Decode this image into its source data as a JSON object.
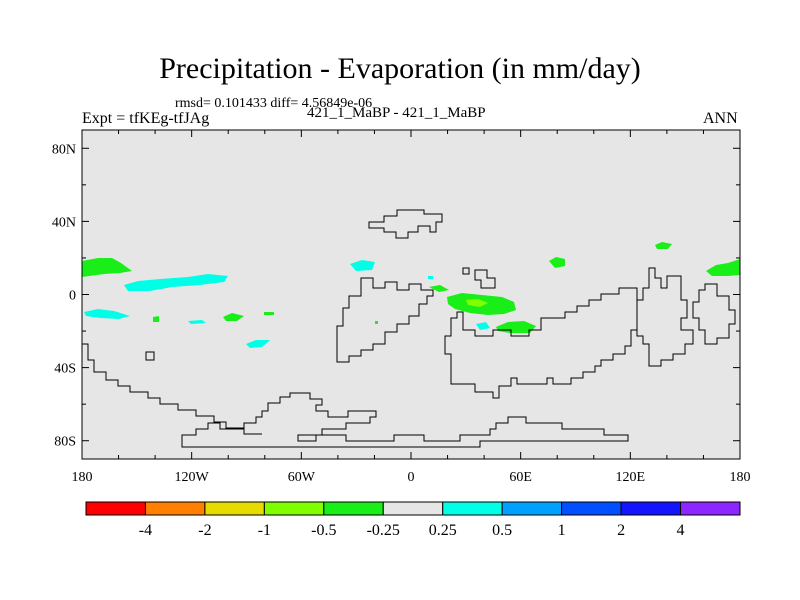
{
  "title": "Precipitation - Evaporation (in mm/day)",
  "stats": "rmsd= 0.101433 diff= 4.56849e-06",
  "expt": "Expt = tfKEg-tfJAg",
  "comparison": "421_1_MaBP - 421_1_MaBP",
  "season": "ANN",
  "map": {
    "background_color": "#e6e6e6",
    "lon_range": [
      -180,
      180
    ],
    "lat_range": [
      -90,
      90
    ],
    "lat_ticks": [
      {
        "value": 80,
        "label": "80N"
      },
      {
        "value": 40,
        "label": "40N"
      },
      {
        "value": 0,
        "label": "0"
      },
      {
        "value": -40,
        "label": "40S"
      },
      {
        "value": -80,
        "label": "80S"
      }
    ],
    "lon_ticks": [
      {
        "value": -180,
        "label": "180"
      },
      {
        "value": -120,
        "label": "120W"
      },
      {
        "value": -60,
        "label": "60W"
      },
      {
        "value": 0,
        "label": "0"
      },
      {
        "value": 60,
        "label": "60E"
      },
      {
        "value": 120,
        "label": "120E"
      },
      {
        "value": 180,
        "label": "180"
      }
    ]
  },
  "colorbar": {
    "colors": [
      "#ff0000",
      "#ff8000",
      "#e6dc00",
      "#80ff00",
      "#19ee19",
      "#e6e6e6",
      "#00ffe6",
      "#00a0ff",
      "#0050ff",
      "#1414ff",
      "#8c28ff"
    ],
    "labels": [
      "-4",
      "-2",
      "-1",
      "-0.5",
      "-0.25",
      "0.25",
      "0.5",
      "1",
      "2",
      "4"
    ]
  }
}
